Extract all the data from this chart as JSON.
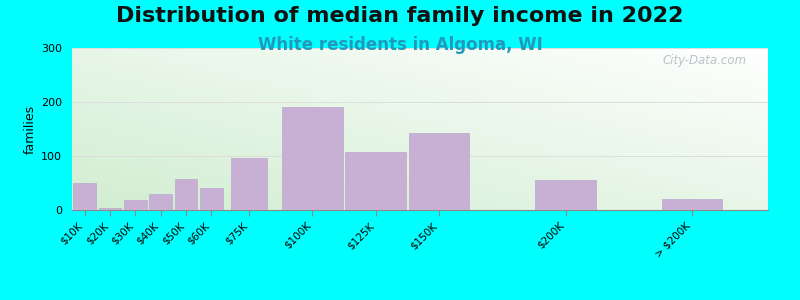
{
  "title": "Distribution of median family income in 2022",
  "subtitle": "White residents in Algoma, WI",
  "ylabel": "families",
  "background_color": "#00FFFF",
  "bar_color": "#c8b0d5",
  "bar_edge_color": "#bba8cc",
  "categories": [
    "$10K",
    "$20K",
    "$30K",
    "$40K",
    "$50K",
    "$60K",
    "$75K",
    "$100K",
    "$125K",
    "$150K",
    "$200K",
    "> $200K"
  ],
  "x_positions": [
    10,
    20,
    30,
    40,
    50,
    60,
    75,
    100,
    125,
    150,
    200,
    250
  ],
  "bar_widths": [
    10,
    10,
    10,
    10,
    10,
    10,
    15,
    25,
    25,
    25,
    25,
    25
  ],
  "values": [
    50,
    3,
    18,
    30,
    58,
    40,
    97,
    190,
    108,
    143,
    55,
    20
  ],
  "ylim": [
    0,
    300
  ],
  "xlim": [
    5,
    280
  ],
  "yticks": [
    0,
    100,
    200,
    300
  ],
  "xtick_positions": [
    10,
    20,
    30,
    40,
    50,
    60,
    75,
    100,
    125,
    150,
    200,
    250
  ],
  "watermark": "City-Data.com",
  "title_fontsize": 16,
  "subtitle_fontsize": 12,
  "subtitle_color": "#2299bb",
  "ylabel_fontsize": 9
}
